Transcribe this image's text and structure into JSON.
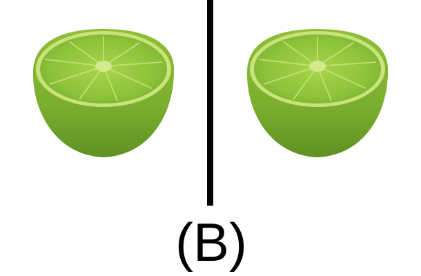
{
  "label": "(B)"
}
